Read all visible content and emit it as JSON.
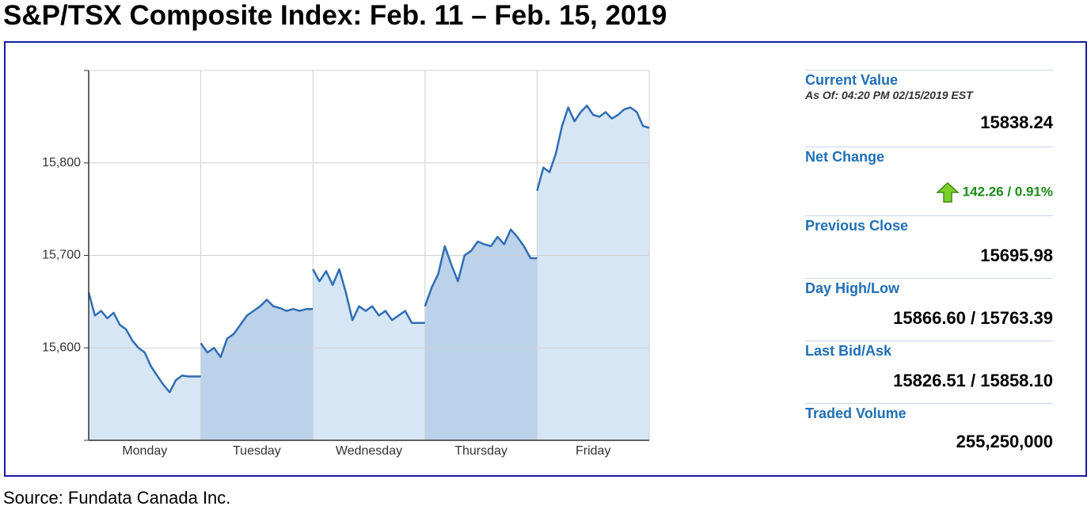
{
  "title": "S&P/TSX Composite Index: Feb. 11 – Feb. 15, 2019",
  "source": "Source: Fundata Canada Inc.",
  "chart_data": {
    "type": "line",
    "color": "#2f6db5",
    "categories": [
      "Monday",
      "Tuesday",
      "Wednesday",
      "Thursday",
      "Friday"
    ],
    "values": [
      [
        15660,
        15635,
        15640,
        15632,
        15638,
        15625,
        15620,
        15608,
        15600,
        15595,
        15580,
        15570,
        15560,
        15552,
        15565,
        15570,
        15569,
        15569,
        15569
      ],
      [
        15605,
        15595,
        15600,
        15590,
        15610,
        15615,
        15625,
        15635,
        15640,
        15645,
        15652,
        15645,
        15643,
        15640,
        15642,
        15640,
        15642,
        15642
      ],
      [
        15685,
        15672,
        15683,
        15668,
        15685,
        15660,
        15630,
        15645,
        15640,
        15645,
        15635,
        15640,
        15630,
        15635,
        15640,
        15627,
        15627,
        15627
      ],
      [
        15645,
        15665,
        15680,
        15710,
        15690,
        15672,
        15700,
        15705,
        15715,
        15712,
        15710,
        15720,
        15712,
        15728,
        15720,
        15710,
        15697,
        15697
      ],
      [
        15770,
        15795,
        15790,
        15810,
        15840,
        15860,
        15845,
        15855,
        15862,
        15852,
        15850,
        15855,
        15848,
        15852,
        15858,
        15860,
        15855,
        15840,
        15838
      ]
    ],
    "ylim": [
      15500,
      15900
    ],
    "yticks": [
      {
        "value": 15600,
        "label": "15,600"
      },
      {
        "value": 15700,
        "label": "15,700"
      },
      {
        "value": 15800,
        "label": "15,800"
      }
    ],
    "grid": true
  },
  "quote": [
    {
      "label": "Current Value",
      "note": "As Of: 04:20 PM 02/15/2019 EST",
      "value": "15838.24"
    },
    {
      "label": "Net Change",
      "change": "142.26 / 0.91%"
    },
    {
      "label": "Previous Close",
      "value": "15695.98"
    },
    {
      "label": "Day High/Low",
      "value": "15866.60 / 15763.39"
    },
    {
      "label": "Last Bid/Ask",
      "value": "15826.51 / 15858.10"
    },
    {
      "label": "Traded Volume",
      "value": "255,250,000"
    }
  ]
}
